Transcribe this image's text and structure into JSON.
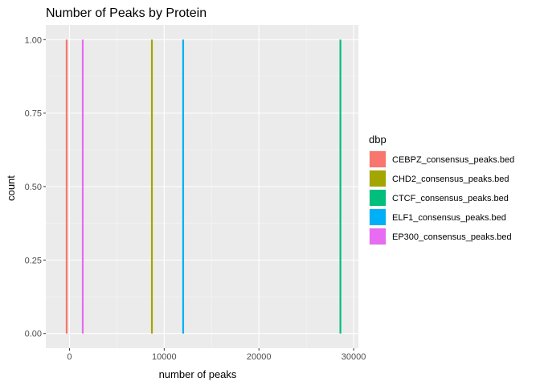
{
  "chart_data": {
    "type": "histogram",
    "title": "Number of Peaks by Protein",
    "xlabel": "number of peaks",
    "ylabel": "count",
    "xlim": [
      -2500,
      30500
    ],
    "ylim": [
      -0.05,
      1.05
    ],
    "x_ticks": [
      0,
      10000,
      20000,
      30000
    ],
    "x_tick_labels": [
      "0",
      "10000",
      "20000",
      "30000"
    ],
    "y_ticks": [
      0,
      0.25,
      0.5,
      0.75,
      1.0
    ],
    "y_tick_labels": [
      "0.00",
      "0.25",
      "0.50",
      "0.75",
      "1.00"
    ],
    "grid": true,
    "legend_title": "dbp",
    "legend_position": "right",
    "series": [
      {
        "name": "CEBPZ_consensus_peaks.bed",
        "x": -300,
        "count": 1,
        "color": "#F8766D"
      },
      {
        "name": "CHD2_consensus_peaks.bed",
        "x": 8700,
        "count": 1,
        "color": "#A3A500"
      },
      {
        "name": "CTCF_consensus_peaks.bed",
        "x": 28600,
        "count": 1,
        "color": "#00BF7D"
      },
      {
        "name": "ELF1_consensus_peaks.bed",
        "x": 12000,
        "count": 1,
        "color": "#00B0F6"
      },
      {
        "name": "EP300_consensus_peaks.bed",
        "x": 1400,
        "count": 1,
        "color": "#E76BF3"
      }
    ]
  }
}
